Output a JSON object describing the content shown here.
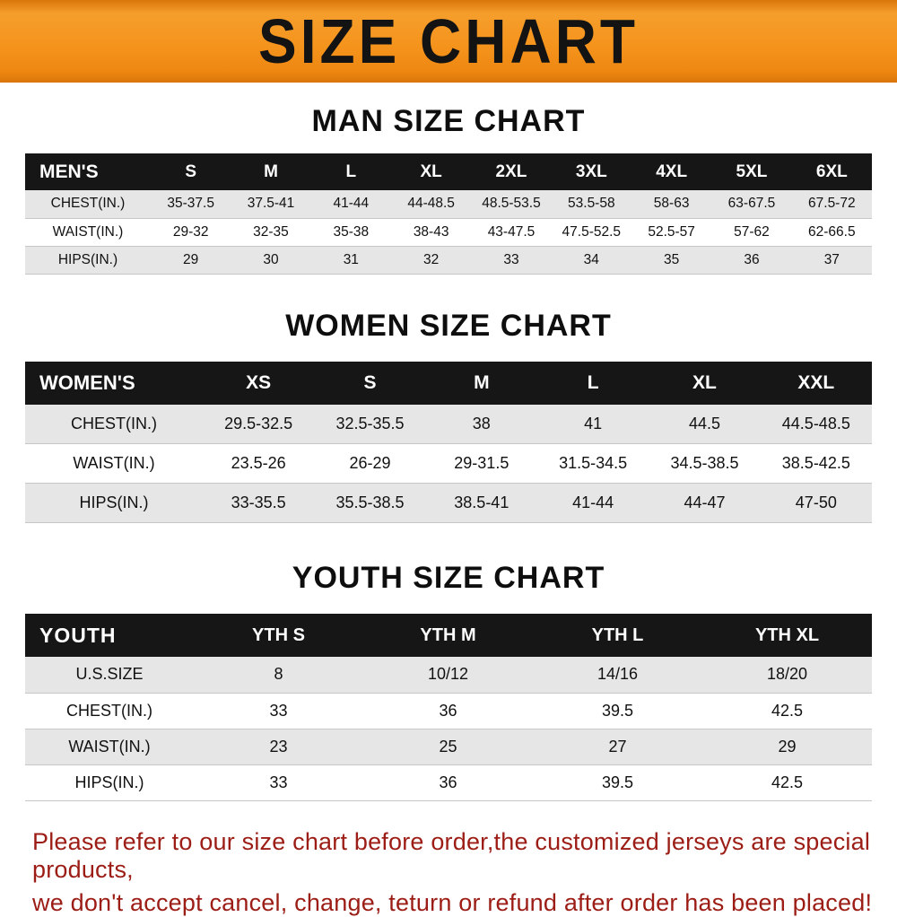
{
  "banner": {
    "title": "SIZE CHART",
    "bg_color": "#f5941d",
    "text_color": "#131313"
  },
  "chart_data": [
    {
      "type": "table",
      "title": "MAN SIZE CHART",
      "columns": [
        "MEN'S",
        "S",
        "M",
        "L",
        "XL",
        "2XL",
        "3XL",
        "4XL",
        "5XL",
        "6XL"
      ],
      "rows": [
        [
          "CHEST(IN.)",
          "35-37.5",
          "37.5-41",
          "41-44",
          "44-48.5",
          "48.5-53.5",
          "53.5-58",
          "58-63",
          "63-67.5",
          "67.5-72"
        ],
        [
          "WAIST(IN.)",
          "29-32",
          "32-35",
          "35-38",
          "38-43",
          "43-47.5",
          "47.5-52.5",
          "52.5-57",
          "57-62",
          "62-66.5"
        ],
        [
          "HIPS(IN.)",
          "29",
          "30",
          "31",
          "32",
          "33",
          "34",
          "35",
          "36",
          "37"
        ]
      ],
      "header_bg": "#161616",
      "row_shade": "#e6e6e6"
    },
    {
      "type": "table",
      "title": "WOMEN SIZE CHART",
      "columns": [
        "WOMEN'S",
        "XS",
        "S",
        "M",
        "L",
        "XL",
        "XXL"
      ],
      "rows": [
        [
          "CHEST(IN.)",
          "29.5-32.5",
          "32.5-35.5",
          "38",
          "41",
          "44.5",
          "44.5-48.5"
        ],
        [
          "WAIST(IN.)",
          "23.5-26",
          "26-29",
          "29-31.5",
          "31.5-34.5",
          "34.5-38.5",
          "38.5-42.5"
        ],
        [
          "HIPS(IN.)",
          "33-35.5",
          "35.5-38.5",
          "38.5-41",
          "41-44",
          "44-47",
          "47-50"
        ]
      ],
      "header_bg": "#161616",
      "row_shade": "#e6e6e6"
    },
    {
      "type": "table",
      "title": "YOUTH SIZE CHART",
      "columns": [
        "YOUTH",
        "YTH S",
        "YTH M",
        "YTH L",
        "YTH XL"
      ],
      "rows": [
        [
          "U.S.SIZE",
          "8",
          "10/12",
          "14/16",
          "18/20"
        ],
        [
          "CHEST(IN.)",
          "33",
          "36",
          "39.5",
          "42.5"
        ],
        [
          "WAIST(IN.)",
          "23",
          "25",
          "27",
          "29"
        ],
        [
          "HIPS(IN.)",
          "33",
          "36",
          "39.5",
          "42.5"
        ]
      ],
      "header_bg": "#161616",
      "row_shade": "#e6e6e6"
    }
  ],
  "footer": {
    "line1": "Please refer to our size chart before order,the customized jerseys are special products,",
    "line2": "we don't accept cancel, change, teturn or refund after order has been placed!",
    "text_color": "#9c1d15"
  }
}
